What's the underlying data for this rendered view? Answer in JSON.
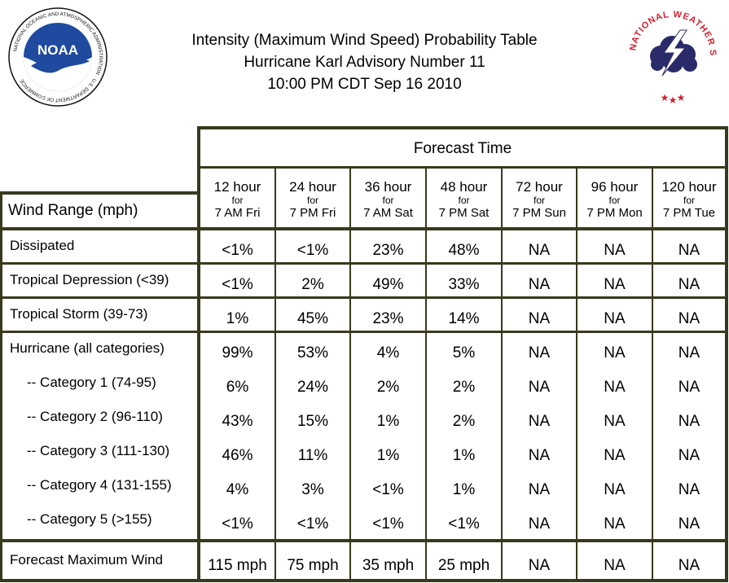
{
  "title": {
    "line1": "Intensity (Maximum Wind Speed) Probability Table",
    "line2": "Hurricane Karl Advisory Number 11",
    "line3": "10:00 PM CDT Sep 16 2010"
  },
  "logos": {
    "noaa_text": "NOAA",
    "noaa_ring_text": "NATIONAL OCEANIC AND ATMOSPHERIC ADMINISTRATION · U.S. DEPARTMENT OF COMMERCE",
    "nws_ring_text": "NATIONAL WEATHER SERVICE"
  },
  "table": {
    "group_header": "Forecast Time",
    "row_header": "Wind Range (mph)",
    "columns": [
      {
        "hour": "12 hour",
        "for": "for",
        "when": "7 AM Fri"
      },
      {
        "hour": "24 hour",
        "for": "for",
        "when": "7 PM Fri"
      },
      {
        "hour": "36 hour",
        "for": "for",
        "when": "7 AM Sat"
      },
      {
        "hour": "48 hour",
        "for": "for",
        "when": "7 PM Sat"
      },
      {
        "hour": "72 hour",
        "for": "for",
        "when": "7 PM Sun"
      },
      {
        "hour": "96 hour",
        "for": "for",
        "when": "7 PM Mon"
      },
      {
        "hour": "120 hour",
        "for": "for",
        "when": "7 PM Tue"
      }
    ],
    "rows": [
      {
        "label": "Dissipated",
        "values": [
          "<1%",
          "<1%",
          "23%",
          "48%",
          "NA",
          "NA",
          "NA"
        ]
      },
      {
        "label": "Tropical Depression (<39)",
        "values": [
          "<1%",
          "2%",
          "49%",
          "33%",
          "NA",
          "NA",
          "NA"
        ]
      },
      {
        "label": "Tropical Storm (39-73)",
        "values": [
          "1%",
          "45%",
          "23%",
          "14%",
          "NA",
          "NA",
          "NA"
        ]
      },
      {
        "label": "Hurricane (all categories)",
        "values": [
          "99%",
          "53%",
          "4%",
          "5%",
          "NA",
          "NA",
          "NA"
        ]
      },
      {
        "label": "-- Category 1 (74-95)",
        "values": [
          "6%",
          "24%",
          "2%",
          "2%",
          "NA",
          "NA",
          "NA"
        ]
      },
      {
        "label": "-- Category 2 (96-110)",
        "values": [
          "43%",
          "15%",
          "1%",
          "2%",
          "NA",
          "NA",
          "NA"
        ]
      },
      {
        "label": "-- Category 3 (111-130)",
        "values": [
          "46%",
          "11%",
          "1%",
          "1%",
          "NA",
          "NA",
          "NA"
        ]
      },
      {
        "label": "-- Category 4 (131-155)",
        "values": [
          "4%",
          "3%",
          "<1%",
          "1%",
          "NA",
          "NA",
          "NA"
        ]
      },
      {
        "label": "-- Category 5 (>155)",
        "values": [
          "<1%",
          "<1%",
          "<1%",
          "<1%",
          "NA",
          "NA",
          "NA"
        ]
      },
      {
        "label": "Forecast Maximum Wind",
        "values": [
          "115 mph",
          "75 mph",
          "35 mph",
          "25 mph",
          "NA",
          "NA",
          "NA"
        ]
      }
    ]
  },
  "colors": {
    "grid_line": "#39391d",
    "noaa_blue": "#1f4aa0",
    "nws_red": "#d32030",
    "nws_cloud": "#2b2a6a"
  }
}
